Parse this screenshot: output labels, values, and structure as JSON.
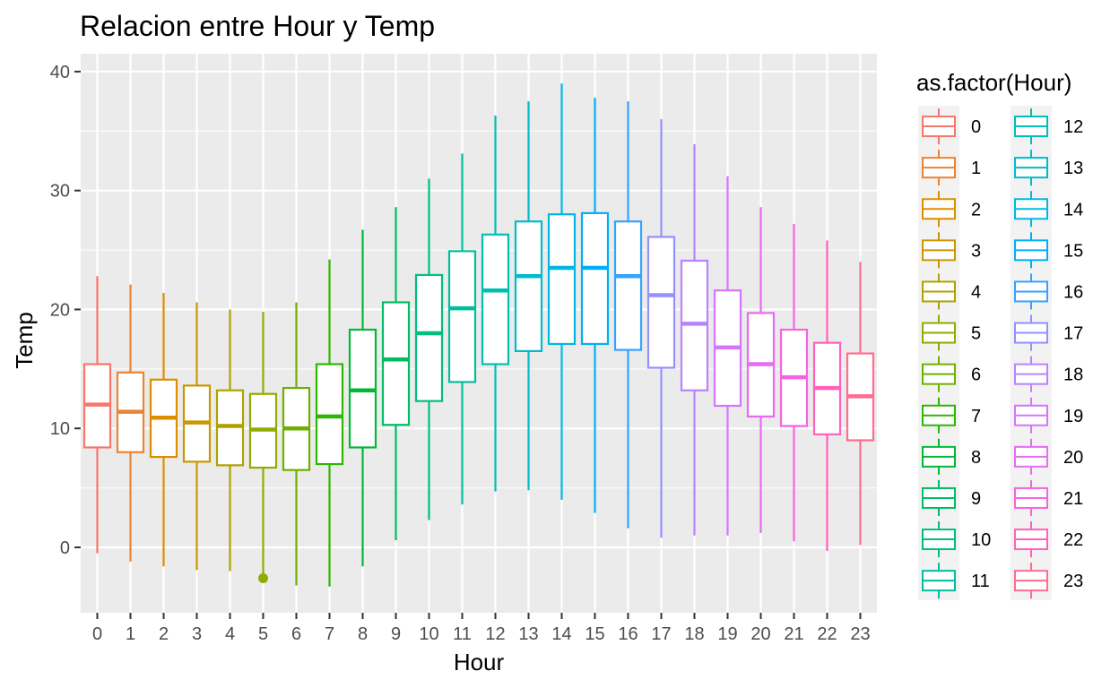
{
  "chart_data": {
    "type": "boxplot",
    "title": "Relacion entre Hour y Temp",
    "xlabel": "Hour",
    "ylabel": "Temp",
    "ylim": [
      -5.5,
      41.5
    ],
    "y_ticks": [
      0,
      10,
      20,
      30,
      40
    ],
    "grid": true,
    "legend": {
      "title": "as.factor(Hour)",
      "placement": "right",
      "columns": 2
    },
    "categories": [
      "0",
      "1",
      "2",
      "3",
      "4",
      "5",
      "6",
      "7",
      "8",
      "9",
      "10",
      "11",
      "12",
      "13",
      "14",
      "15",
      "16",
      "17",
      "18",
      "19",
      "20",
      "21",
      "22",
      "23"
    ],
    "boxes": [
      {
        "hour": "0",
        "min": -0.5,
        "q1": 8.4,
        "median": 12.0,
        "q3": 15.4,
        "max": 22.8,
        "color": "#F8766D"
      },
      {
        "hour": "1",
        "min": -1.2,
        "q1": 8.0,
        "median": 11.4,
        "q3": 14.7,
        "max": 22.1,
        "color": "#EB8335"
      },
      {
        "hour": "2",
        "min": -1.6,
        "q1": 7.6,
        "median": 10.9,
        "q3": 14.1,
        "max": 21.4,
        "color": "#DB8E00"
      },
      {
        "hour": "3",
        "min": -1.9,
        "q1": 7.2,
        "median": 10.5,
        "q3": 13.6,
        "max": 20.6,
        "color": "#C99800"
      },
      {
        "hour": "4",
        "min": -2.0,
        "q1": 6.9,
        "median": 10.2,
        "q3": 13.2,
        "max": 20.0,
        "color": "#B0A100"
      },
      {
        "hour": "5",
        "min": -2.2,
        "q1": 6.7,
        "median": 9.9,
        "q3": 12.9,
        "max": 19.8,
        "outliers": [
          -2.6
        ],
        "color": "#93AA00"
      },
      {
        "hour": "6",
        "min": -3.2,
        "q1": 6.5,
        "median": 10.0,
        "q3": 13.4,
        "max": 20.6,
        "color": "#6EB000"
      },
      {
        "hour": "7",
        "min": -3.3,
        "q1": 7.0,
        "median": 11.0,
        "q3": 15.4,
        "max": 24.2,
        "color": "#2EB600"
      },
      {
        "hour": "8",
        "min": -1.6,
        "q1": 8.4,
        "median": 13.2,
        "q3": 18.3,
        "max": 26.7,
        "color": "#00B938"
      },
      {
        "hour": "9",
        "min": 0.6,
        "q1": 10.3,
        "median": 15.8,
        "q3": 20.6,
        "max": 28.6,
        "color": "#00BC63"
      },
      {
        "hour": "10",
        "min": 2.3,
        "q1": 12.3,
        "median": 18.0,
        "q3": 22.9,
        "max": 31.0,
        "color": "#00BE82"
      },
      {
        "hour": "11",
        "min": 3.6,
        "q1": 13.9,
        "median": 20.1,
        "q3": 24.9,
        "max": 33.1,
        "color": "#00BF9D"
      },
      {
        "hour": "12",
        "min": 4.7,
        "q1": 15.4,
        "median": 21.6,
        "q3": 26.3,
        "max": 36.3,
        "color": "#00BFB5"
      },
      {
        "hour": "13",
        "min": 4.8,
        "q1": 16.5,
        "median": 22.8,
        "q3": 27.4,
        "max": 37.5,
        "color": "#00BCCB"
      },
      {
        "hour": "14",
        "min": 4.0,
        "q1": 17.1,
        "median": 23.5,
        "q3": 28.0,
        "max": 39.0,
        "color": "#00B8E2"
      },
      {
        "hour": "15",
        "min": 2.9,
        "q1": 17.1,
        "median": 23.5,
        "q3": 28.1,
        "max": 37.8,
        "color": "#00B0F6"
      },
      {
        "hour": "16",
        "min": 1.6,
        "q1": 16.6,
        "median": 22.8,
        "q3": 27.4,
        "max": 37.5,
        "color": "#35A2FF"
      },
      {
        "hour": "17",
        "min": 0.8,
        "q1": 15.1,
        "median": 21.2,
        "q3": 26.1,
        "max": 36.0,
        "color": "#9590FF"
      },
      {
        "hour": "18",
        "min": 1.0,
        "q1": 13.2,
        "median": 18.8,
        "q3": 24.1,
        "max": 33.9,
        "color": "#B983FF"
      },
      {
        "hour": "19",
        "min": 1.0,
        "q1": 11.9,
        "median": 16.8,
        "q3": 21.6,
        "max": 31.2,
        "color": "#D575FE"
      },
      {
        "hour": "20",
        "min": 1.2,
        "q1": 11.0,
        "median": 15.4,
        "q3": 19.7,
        "max": 28.6,
        "color": "#E76BF3"
      },
      {
        "hour": "21",
        "min": 0.5,
        "q1": 10.2,
        "median": 14.3,
        "q3": 18.3,
        "max": 27.2,
        "color": "#F763E0"
      },
      {
        "hour": "22",
        "min": -0.3,
        "q1": 9.5,
        "median": 13.4,
        "q3": 17.2,
        "max": 25.8,
        "color": "#FF62BC"
      },
      {
        "hour": "23",
        "min": 0.2,
        "q1": 9.0,
        "median": 12.7,
        "q3": 16.3,
        "max": 24.0,
        "color": "#FF6C91"
      }
    ]
  }
}
